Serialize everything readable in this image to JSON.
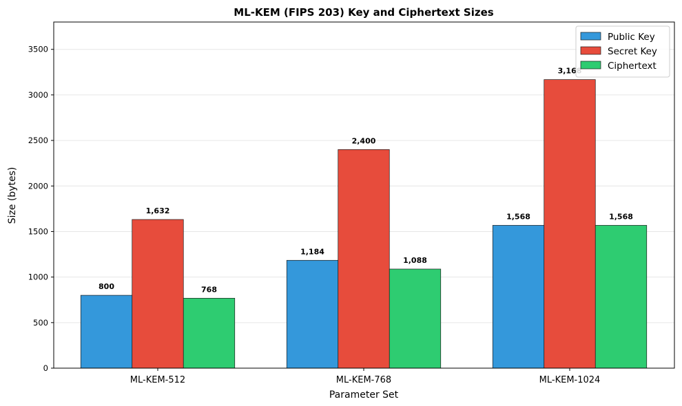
{
  "chart_data": {
    "type": "bar",
    "title": "ML-KEM (FIPS 203) Key and Ciphertext Sizes",
    "xlabel": "Parameter Set",
    "ylabel": "Size (bytes)",
    "categories": [
      "ML-KEM-512",
      "ML-KEM-768",
      "ML-KEM-1024"
    ],
    "series": [
      {
        "name": "Public Key",
        "color": "#3498db",
        "values": [
          800,
          1184,
          1568
        ],
        "labels": [
          "800",
          "1,184",
          "1,568"
        ]
      },
      {
        "name": "Secret Key",
        "color": "#e74c3c",
        "values": [
          1632,
          2400,
          3168
        ],
        "labels": [
          "1,632",
          "2,400",
          "3,168"
        ]
      },
      {
        "name": "Ciphertext",
        "color": "#2ecc71",
        "values": [
          768,
          1088,
          1568
        ],
        "labels": [
          "768",
          "1,088",
          "1,568"
        ]
      }
    ],
    "ylim": [
      0,
      3800
    ],
    "yticks": [
      0,
      500,
      1000,
      1500,
      2000,
      2500,
      3000,
      3500
    ],
    "grid": "y",
    "legend_position": "top-right"
  }
}
